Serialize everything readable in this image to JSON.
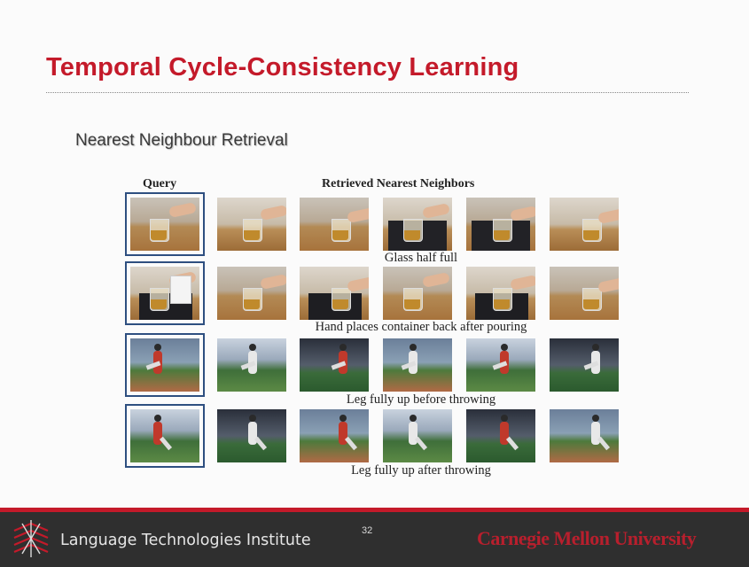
{
  "slide": {
    "title": "Temporal Cycle-Consistency Learning",
    "subtitle": "Nearest Neighbour Retrieval",
    "page_number": "32"
  },
  "figure": {
    "query_header": "Query",
    "retrieved_header": "Retrieved Nearest Neighbors",
    "rows": [
      {
        "caption": "Glass half full",
        "scene": "pouring-table"
      },
      {
        "caption": "Hand places container back after pouring",
        "scene": "pouring-container"
      },
      {
        "caption": "Leg fully up before throwing",
        "scene": "baseball-pitch"
      },
      {
        "caption": "Leg fully up after throwing",
        "scene": "baseball-follow-through"
      }
    ]
  },
  "footer": {
    "institute": "Language Technologies Institute",
    "university": "Carnegie Mellon University",
    "logo_icon": "lti-logo-icon"
  },
  "colors": {
    "title_red": "#c41a2a",
    "footer_bg": "#2f2f2f",
    "query_border": "#2e4f80"
  }
}
